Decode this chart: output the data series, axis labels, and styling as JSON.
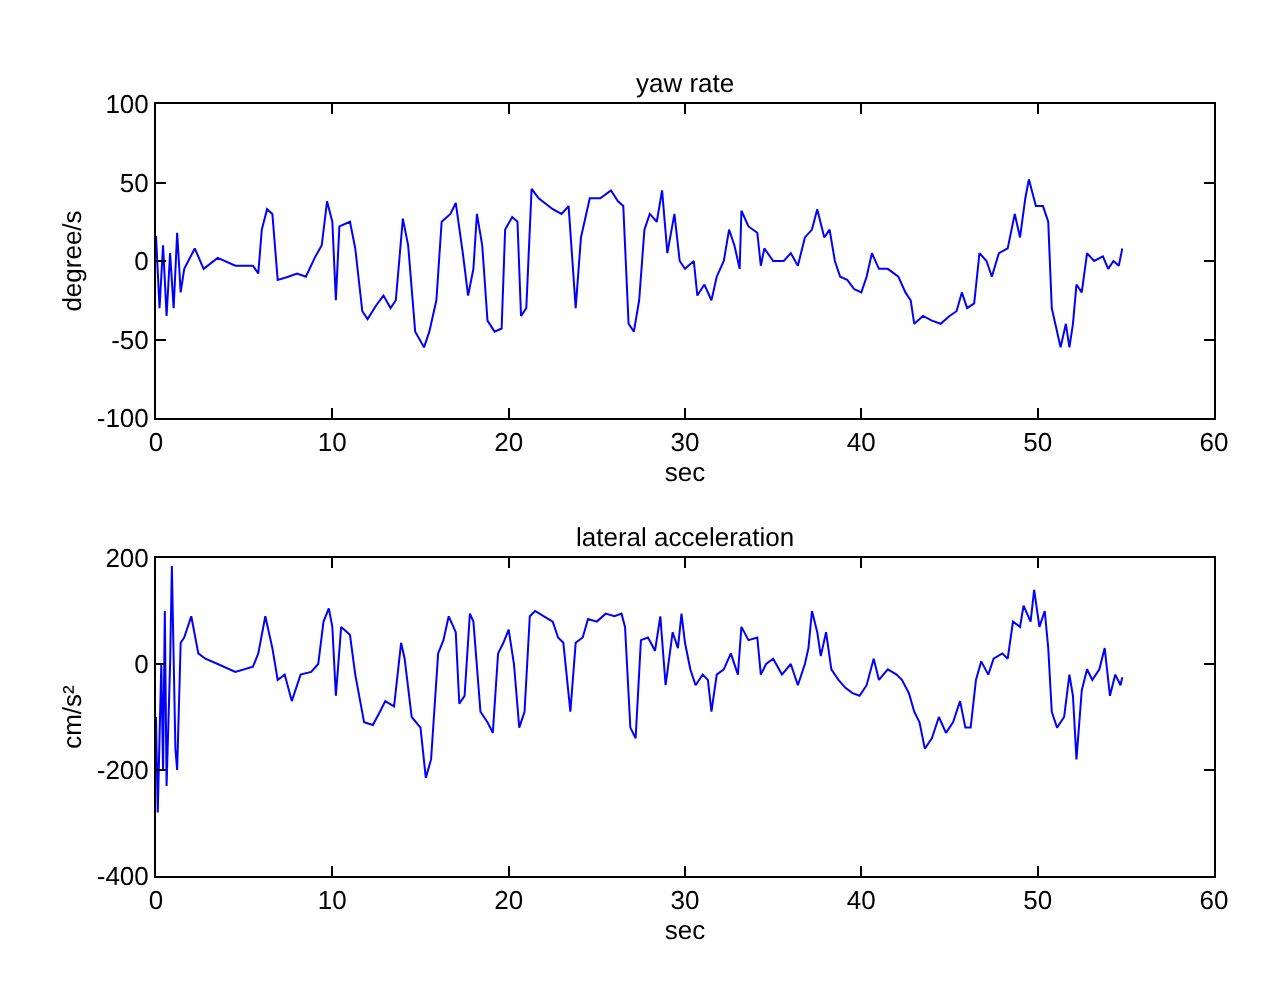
{
  "chart_data": [
    {
      "type": "line",
      "title": "yaw rate",
      "xlabel": "sec",
      "ylabel": "degree/s",
      "xlim": [
        0,
        60
      ],
      "xticks": [
        0,
        10,
        20,
        30,
        40,
        50,
        60
      ],
      "ylim": [
        -100,
        100
      ],
      "yticks": [
        -100,
        -50,
        0,
        50,
        100
      ],
      "marker": "none",
      "line_style": "solid",
      "series": [
        {
          "color": "#0000ff",
          "x": [
            0,
            0.2,
            0.4,
            0.6,
            0.8,
            1.0,
            1.2,
            1.4,
            1.6,
            2.2,
            2.7,
            3.5,
            4.5,
            5.5,
            5.8,
            6.0,
            6.3,
            6.6,
            6.9,
            7.5,
            8.0,
            8.5,
            9.0,
            9.4,
            9.7,
            10.0,
            10.2,
            10.4,
            11.0,
            11.3,
            11.7,
            12.0,
            12.5,
            12.9,
            13.3,
            13.6,
            14.0,
            14.3,
            14.7,
            15.2,
            15.5,
            15.9,
            16.2,
            16.7,
            17.0,
            17.4,
            17.7,
            18.0,
            18.2,
            18.5,
            18.8,
            19.2,
            19.6,
            19.8,
            20.2,
            20.5,
            20.7,
            21.0,
            21.3,
            21.7,
            22.5,
            23.0,
            23.4,
            23.8,
            24.1,
            24.6,
            25.2,
            25.8,
            26.2,
            26.5,
            26.8,
            27.1,
            27.4,
            27.7,
            28.0,
            28.4,
            28.7,
            29.0,
            29.4,
            29.7,
            30.0,
            30.5,
            30.7,
            31.1,
            31.5,
            31.8,
            32.2,
            32.5,
            32.8,
            33.1,
            33.2,
            33.6,
            34.1,
            34.3,
            34.5,
            35.0,
            35.6,
            36.0,
            36.4,
            36.8,
            37.2,
            37.5,
            37.9,
            38.2,
            38.5,
            38.8,
            39.2,
            39.6,
            40.0,
            40.3,
            40.6,
            41.0,
            41.5,
            42.1,
            42.5,
            42.8,
            43.0,
            43.5,
            44.0,
            44.5,
            45.0,
            45.4,
            45.7,
            46.0,
            46.4,
            46.7,
            47.1,
            47.4,
            47.8,
            48.3,
            48.7,
            49.0,
            49.3,
            49.5,
            49.9,
            50.3,
            50.6,
            50.8,
            51.0,
            51.3,
            51.6,
            51.8,
            52.0,
            52.2,
            52.5,
            52.8,
            53.2,
            53.7,
            54.0,
            54.3,
            54.6,
            54.8
          ],
          "values": [
            16,
            -30,
            10,
            -35,
            5,
            -30,
            18,
            -20,
            -5,
            8,
            -5,
            2,
            -3,
            -3,
            -8,
            20,
            33,
            30,
            -12,
            -10,
            -8,
            -10,
            2,
            10,
            38,
            25,
            -25,
            22,
            25,
            8,
            -32,
            -37,
            -28,
            -22,
            -30,
            -25,
            27,
            10,
            -45,
            -55,
            -45,
            -25,
            25,
            30,
            37,
            5,
            -22,
            -5,
            30,
            10,
            -38,
            -45,
            -43,
            20,
            28,
            25,
            -35,
            -30,
            46,
            40,
            33,
            30,
            35,
            -30,
            15,
            40,
            40,
            45,
            38,
            35,
            -40,
            -45,
            -25,
            20,
            30,
            25,
            45,
            5,
            30,
            0,
            -5,
            0,
            -22,
            -15,
            -25,
            -10,
            0,
            20,
            10,
            -5,
            32,
            22,
            18,
            -3,
            8,
            0,
            0,
            5,
            -3,
            15,
            20,
            33,
            15,
            20,
            0,
            -10,
            -12,
            -18,
            -20,
            -10,
            5,
            -5,
            -5,
            -10,
            -20,
            -25,
            -40,
            -35,
            -38,
            -40,
            -35,
            -32,
            -20,
            -30,
            -27,
            5,
            0,
            -10,
            5,
            8,
            30,
            15,
            40,
            52,
            35,
            35,
            25,
            -30,
            -40,
            -55,
            -40,
            -55,
            -40,
            -15,
            -20,
            5,
            0,
            3,
            -5,
            0,
            -3,
            8
          ]
        }
      ]
    },
    {
      "type": "line",
      "title": "lateral acceleration",
      "xlabel": "sec",
      "ylabel": "cm/s²",
      "xlim": [
        0,
        60
      ],
      "xticks": [
        0,
        10,
        20,
        30,
        40,
        50,
        60
      ],
      "ylim": [
        -400,
        200
      ],
      "yticks": [
        -400,
        -200,
        0,
        200
      ],
      "marker": "none",
      "line_style": "solid",
      "series": [
        {
          "color": "#0000ff",
          "x": [
            0,
            0.1,
            0.3,
            0.4,
            0.5,
            0.6,
            0.8,
            0.9,
            1.1,
            1.2,
            1.4,
            1.6,
            2.0,
            2.4,
            2.8,
            3.5,
            4.5,
            5.5,
            5.8,
            6.2,
            6.6,
            6.9,
            7.3,
            7.7,
            8.2,
            8.8,
            9.2,
            9.5,
            9.8,
            10.0,
            10.2,
            10.5,
            11.0,
            11.3,
            11.8,
            12.3,
            12.7,
            13.0,
            13.5,
            13.9,
            14.1,
            14.5,
            15.0,
            15.3,
            15.6,
            16.0,
            16.3,
            16.6,
            17.0,
            17.2,
            17.5,
            17.8,
            18.0,
            18.4,
            18.8,
            19.1,
            19.4,
            19.7,
            20.0,
            20.3,
            20.6,
            20.9,
            21.2,
            21.5,
            22.0,
            22.5,
            22.8,
            23.1,
            23.5,
            23.8,
            24.2,
            24.5,
            25.0,
            25.5,
            26.0,
            26.4,
            26.6,
            26.9,
            27.2,
            27.5,
            27.9,
            28.3,
            28.6,
            28.9,
            29.3,
            29.6,
            29.8,
            30.0,
            30.3,
            30.6,
            31.0,
            31.3,
            31.5,
            31.8,
            32.2,
            32.6,
            33.0,
            33.2,
            33.6,
            34.1,
            34.3,
            34.6,
            35.0,
            35.5,
            36.0,
            36.4,
            36.8,
            37.0,
            37.2,
            37.5,
            37.7,
            38.0,
            38.3,
            38.7,
            39.1,
            39.5,
            39.9,
            40.3,
            40.7,
            41.0,
            41.5,
            42.0,
            42.3,
            42.7,
            43.0,
            43.3,
            43.6,
            44.0,
            44.4,
            44.8,
            45.2,
            45.6,
            45.9,
            46.2,
            46.5,
            46.8,
            47.2,
            47.5,
            48.0,
            48.3,
            48.6,
            49.0,
            49.2,
            49.6,
            49.8,
            50.1,
            50.4,
            50.6,
            50.8,
            51.1,
            51.5,
            51.8,
            52.0,
            52.2,
            52.5,
            52.8,
            53.1,
            53.5,
            53.8,
            54.1,
            54.4,
            54.7,
            54.8
          ],
          "values": [
            -100,
            -280,
            0,
            -200,
            100,
            -230,
            0,
            185,
            -160,
            -200,
            40,
            50,
            90,
            20,
            10,
            0,
            -15,
            -5,
            20,
            90,
            30,
            -30,
            -20,
            -70,
            -20,
            -15,
            0,
            80,
            105,
            70,
            -60,
            70,
            55,
            -20,
            -110,
            -115,
            -90,
            -70,
            -80,
            40,
            10,
            -100,
            -120,
            -215,
            -180,
            20,
            45,
            90,
            60,
            -75,
            -60,
            95,
            80,
            -90,
            -110,
            -130,
            20,
            40,
            65,
            0,
            -120,
            -90,
            90,
            100,
            90,
            80,
            50,
            40,
            -90,
            40,
            50,
            85,
            80,
            95,
            90,
            95,
            70,
            -120,
            -140,
            45,
            50,
            25,
            90,
            -40,
            60,
            30,
            95,
            40,
            -10,
            -40,
            -20,
            -30,
            -90,
            -20,
            -10,
            20,
            -20,
            70,
            45,
            50,
            -20,
            0,
            10,
            -20,
            0,
            -40,
            0,
            30,
            100,
            60,
            15,
            60,
            -10,
            -30,
            -45,
            -55,
            -60,
            -40,
            10,
            -30,
            -10,
            -20,
            -30,
            -55,
            -90,
            -110,
            -160,
            -140,
            -100,
            -130,
            -110,
            -70,
            -120,
            -120,
            -30,
            5,
            -20,
            10,
            20,
            10,
            80,
            70,
            110,
            80,
            140,
            70,
            100,
            30,
            -90,
            -120,
            -100,
            -20,
            -60,
            -180,
            -50,
            -10,
            -30,
            -10,
            30,
            -60,
            -20,
            -40,
            -25
          ]
        }
      ]
    }
  ]
}
